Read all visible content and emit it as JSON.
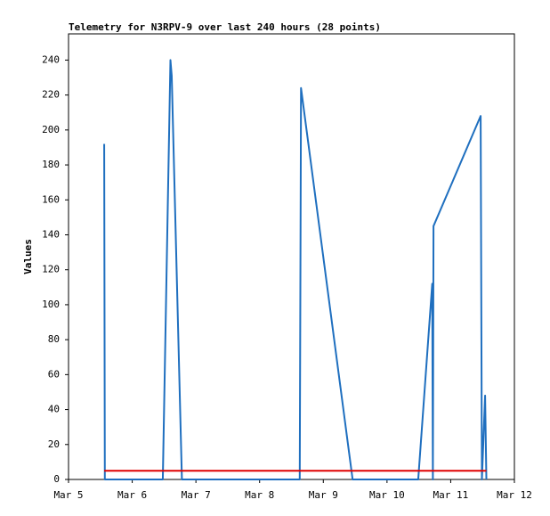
{
  "chart_data": {
    "type": "line",
    "title": "Telemetry for N3RPV-9 over last 240 hours (28 points)",
    "y_label": "Values",
    "xlim": [
      5,
      12
    ],
    "xticks": [
      {
        "value": 5,
        "label": "Mar 5"
      },
      {
        "value": 6,
        "label": "Mar 6"
      },
      {
        "value": 7,
        "label": "Mar 7"
      },
      {
        "value": 8,
        "label": "Mar 8"
      },
      {
        "value": 9,
        "label": "Mar 9"
      },
      {
        "value": 10,
        "label": "Mar 10"
      },
      {
        "value": 11,
        "label": "Mar 11"
      },
      {
        "value": 12,
        "label": "Mar 12"
      }
    ],
    "ylim": [
      0,
      255
    ],
    "yticks": [
      0,
      20,
      40,
      60,
      80,
      100,
      120,
      140,
      160,
      180,
      200,
      220,
      240
    ],
    "series": [
      {
        "color": "#1f6fbf",
        "x": [
          5.56,
          5.57,
          6.48,
          6.6,
          6.62,
          6.78,
          8.63,
          8.65,
          9.46,
          10.49,
          10.71,
          10.72,
          10.73,
          11.47,
          11.49,
          11.54,
          11.56
        ],
        "values": [
          192,
          0,
          0,
          240,
          231,
          0,
          0,
          224,
          0,
          0,
          112,
          0,
          145,
          208,
          0,
          48,
          0
        ]
      },
      {
        "color": "#e00000",
        "x": [
          5.56,
          11.56
        ],
        "values": [
          5,
          5
        ]
      }
    ]
  }
}
